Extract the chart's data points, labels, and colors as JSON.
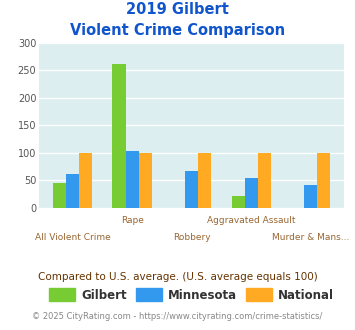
{
  "title_line1": "2019 Gilbert",
  "title_line2": "Violent Crime Comparison",
  "top_labels": [
    "",
    "Rape",
    "",
    "Aggravated Assault",
    ""
  ],
  "bottom_labels": [
    "All Violent Crime",
    "",
    "Robbery",
    "",
    "Murder & Mans..."
  ],
  "gilbert": [
    45,
    262,
    0,
    22,
    0
  ],
  "minnesota": [
    62,
    104,
    68,
    54,
    41
  ],
  "national": [
    100,
    100,
    100,
    100,
    100
  ],
  "gilbert_color": "#77cc33",
  "minnesota_color": "#3399ee",
  "national_color": "#ffaa22",
  "ylim": [
    0,
    300
  ],
  "yticks": [
    0,
    50,
    100,
    150,
    200,
    250,
    300
  ],
  "plot_bg": "#ddeef0",
  "fig_bg": "#ffffff",
  "title_color": "#1155cc",
  "subtitle_note": "Compared to U.S. average. (U.S. average equals 100)",
  "footer": "© 2025 CityRating.com - https://www.cityrating.com/crime-statistics/",
  "bar_width": 0.22,
  "legend_labels": [
    "Gilbert",
    "Minnesota",
    "National"
  ],
  "label_color": "#996633",
  "subtitle_color": "#663300",
  "footer_color": "#888888"
}
